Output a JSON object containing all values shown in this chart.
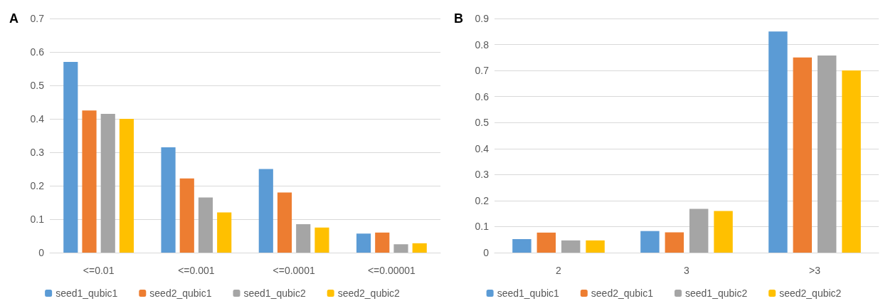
{
  "chart_data": [
    {
      "type": "bar",
      "title": "A",
      "categories": [
        "<=0.01",
        "<=0.001",
        "<=0.0001",
        "<=0.00001"
      ],
      "series": [
        {
          "name": "seed1_qubic1",
          "color": "#5b9bd5",
          "values": [
            0.57,
            0.315,
            0.25,
            0.057
          ]
        },
        {
          "name": "seed2_qubic1",
          "color": "#ed7d31",
          "values": [
            0.425,
            0.222,
            0.18,
            0.06
          ]
        },
        {
          "name": "seed1_qubic2",
          "color": "#a5a5a5",
          "values": [
            0.415,
            0.165,
            0.085,
            0.025
          ]
        },
        {
          "name": "seed2_qubic2",
          "color": "#ffc000",
          "values": [
            0.4,
            0.12,
            0.075,
            0.028
          ]
        }
      ],
      "ylim": [
        0,
        0.7
      ],
      "yticks": [
        0,
        0.1,
        0.2,
        0.3,
        0.4,
        0.5,
        0.6,
        0.7
      ],
      "grid": "y",
      "legend": "bottom"
    },
    {
      "type": "bar",
      "title": "B",
      "categories": [
        "2",
        "3",
        ">3"
      ],
      "series": [
        {
          "name": "seed1_qubic1",
          "color": "#5b9bd5",
          "values": [
            0.052,
            0.083,
            0.85
          ]
        },
        {
          "name": "seed2_qubic1",
          "color": "#ed7d31",
          "values": [
            0.077,
            0.078,
            0.75
          ]
        },
        {
          "name": "seed1_qubic2",
          "color": "#a5a5a5",
          "values": [
            0.047,
            0.168,
            0.758
          ]
        },
        {
          "name": "seed2_qubic2",
          "color": "#ffc000",
          "values": [
            0.047,
            0.16,
            0.7
          ]
        }
      ],
      "ylim": [
        0,
        0.9
      ],
      "yticks": [
        0,
        0.1,
        0.2,
        0.3,
        0.4,
        0.5,
        0.6,
        0.7,
        0.8,
        0.9
      ],
      "grid": "y",
      "legend": "bottom"
    }
  ]
}
